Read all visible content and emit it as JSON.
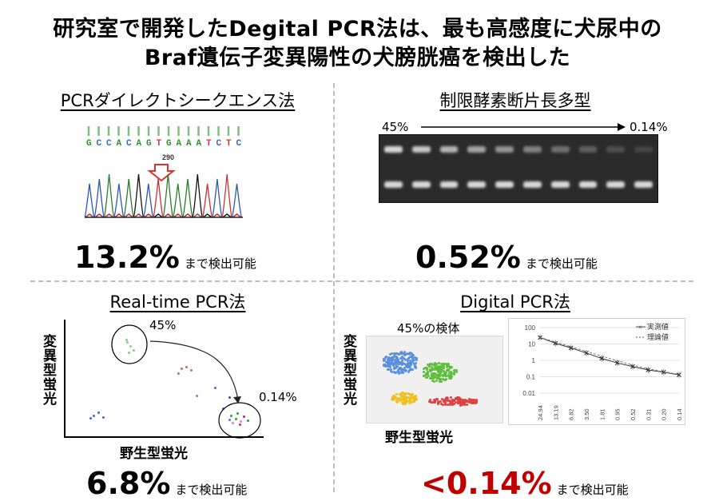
{
  "title": {
    "line1": "研究室で開発したDegital PCR法は、最も高感度に犬尿中の",
    "line2": "Braf遺伝子変異陽性の犬膀胱癌を検出した"
  },
  "panels": {
    "sanger": {
      "title": "PCRダイレクトシークエンス法",
      "sequence": [
        "G",
        "C",
        "C",
        "A",
        "C",
        "A",
        "G",
        "T",
        "G",
        "A",
        "A",
        "A",
        "T",
        "C",
        "T",
        "C"
      ],
      "seq_colors": [
        "#2f8f2f",
        "#3a68c8",
        "#3a68c8",
        "#2f8f2f",
        "#3a68c8",
        "#2f8f2f",
        "#2f8f2f",
        "#d23a3a",
        "#2f8f2f",
        "#2f8f2f",
        "#2f8f2f",
        "#2f8f2f",
        "#d23a3a",
        "#3a68c8",
        "#d23a3a",
        "#3a68c8"
      ],
      "position": "290",
      "result_value": "13.2%",
      "result_suffix": "まで検出可能"
    },
    "rflp": {
      "title": "制限酵素断片長多型",
      "gradient_start": "45%",
      "gradient_end": "0.14%",
      "result_value": "0.52%",
      "result_suffix": "まで検出可能"
    },
    "realtime": {
      "title": "Real-time PCR法",
      "y_axis": "変異型蛍光",
      "x_axis": "野生型蛍光",
      "label_high": "45%",
      "label_low": "0.14%",
      "result_value": "6.8%",
      "result_suffix": "まで検出可能"
    },
    "digital": {
      "title": "Digital PCR法",
      "scatter_title": "45%の検体",
      "y_axis": "変異型蛍光",
      "x_axis": "野生型蛍光",
      "result_value": "<0.14%",
      "result_suffix": "まで検出可能",
      "legend_measured": "実測値",
      "legend_theory": "理論値"
    }
  },
  "chart_data": {
    "type": "line",
    "x": [
      "24.94",
      "13.19",
      "6.82",
      "3.50",
      "1.81",
      "0.95",
      "0.52",
      "0.31",
      "0.20",
      "0.14"
    ],
    "series": [
      {
        "name": "実測値",
        "values": [
          25,
          11,
          5.8,
          2.8,
          1.3,
          0.7,
          0.42,
          0.26,
          0.19,
          0.13
        ]
      },
      {
        "name": "理論値",
        "values": [
          24.94,
          13.19,
          6.82,
          3.5,
          1.81,
          0.95,
          0.52,
          0.31,
          0.2,
          0.14
        ]
      }
    ],
    "yscale": "log",
    "y_ticks": [
      "100",
      "10",
      "1",
      "0.1",
      "0.01"
    ],
    "ylim": [
      0.01,
      100
    ],
    "legend": "top-right"
  }
}
